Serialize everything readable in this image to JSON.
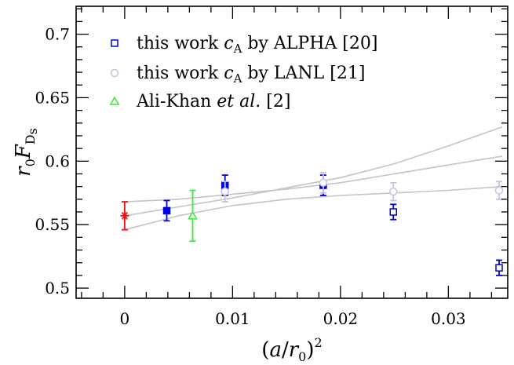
{
  "chart_data": {
    "type": "scatter",
    "xlabel": "(a/r₀)²",
    "ylabel": "r₀F_Ds",
    "xlim": [
      -0.0045,
      0.0355
    ],
    "ylim": [
      0.492,
      0.722
    ],
    "x_ticks": [
      0,
      0.01,
      0.02,
      0.03
    ],
    "x_tick_labels": [
      "0",
      "0.01",
      "0.02",
      "0.03"
    ],
    "y_ticks": [
      0.5,
      0.55,
      0.6,
      0.65,
      0.7
    ],
    "y_tick_labels": [
      "0.5",
      "0.55",
      "0.6",
      "0.65",
      "0.7"
    ],
    "legend_position": "top-left",
    "grid": false,
    "colors": {
      "blue": "#0000dd",
      "lavender": "#c2c2ea",
      "green": "#33ee33",
      "red": "#ee1111",
      "fit": "#c4c4c4"
    },
    "series": [
      {
        "name": "this work c_A by ALPHA [20]",
        "marker": "square",
        "color": "#0000dd",
        "points": [
          {
            "x": 0.0039,
            "y": 0.561,
            "err": 0.008,
            "filled": true
          },
          {
            "x": 0.0093,
            "y": 0.581,
            "err": 0.008,
            "filled": true
          },
          {
            "x": 0.0184,
            "y": 0.581,
            "err": 0.008,
            "filled": true
          },
          {
            "x": 0.0249,
            "y": 0.56,
            "err": 0.006,
            "filled": false
          },
          {
            "x": 0.0347,
            "y": 0.516,
            "err": 0.006,
            "filled": false
          }
        ]
      },
      {
        "name": "this work c_A by LANL [21]",
        "marker": "circle",
        "color": "#c2c2ea",
        "points": [
          {
            "x": 0.0093,
            "y": 0.576,
            "err": 0.008,
            "filled": false
          },
          {
            "x": 0.0184,
            "y": 0.583,
            "err": 0.008,
            "filled": false
          },
          {
            "x": 0.0249,
            "y": 0.576,
            "err": 0.007,
            "filled": false
          },
          {
            "x": 0.0347,
            "y": 0.577,
            "err": 0.007,
            "filled": false
          }
        ]
      },
      {
        "name": "Ali-Khan et al. [2]",
        "marker": "triangle",
        "color": "#33ee33",
        "points": [
          {
            "x": 0.0063,
            "y": 0.557,
            "err": 0.02,
            "filled": false
          }
        ]
      }
    ],
    "continuum_point": {
      "x": 0,
      "y": 0.557,
      "err": 0.011,
      "marker": "star",
      "color": "#ee1111"
    },
    "fit_curves": [
      {
        "x": [
          0,
          0.005,
          0.01,
          0.015,
          0.02,
          0.025,
          0.03,
          0.035
        ],
        "y": [
          0.568,
          0.57,
          0.574,
          0.578,
          0.583,
          0.59,
          0.597,
          0.604
        ]
      },
      {
        "x": [
          0,
          0.005,
          0.01,
          0.015,
          0.02,
          0.025,
          0.03,
          0.035
        ],
        "y": [
          0.557,
          0.564,
          0.571,
          0.579,
          0.587,
          0.598,
          0.612,
          0.627
        ]
      },
      {
        "x": [
          0,
          0.005,
          0.01,
          0.015,
          0.02,
          0.025,
          0.03,
          0.035
        ],
        "y": [
          0.546,
          0.557,
          0.565,
          0.57,
          0.573,
          0.575,
          0.577,
          0.58
        ]
      }
    ]
  }
}
